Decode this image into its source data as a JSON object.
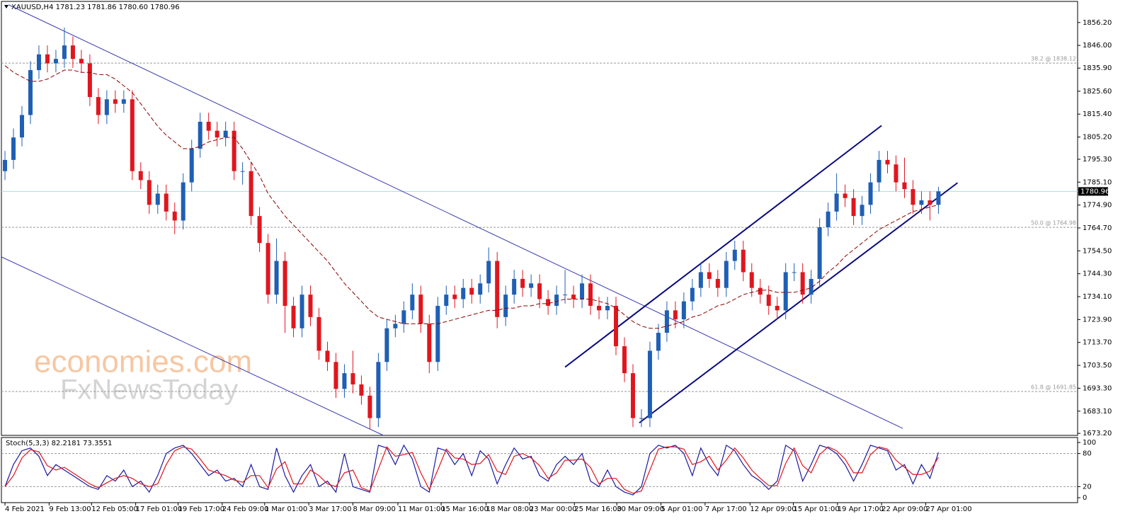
{
  "chart_data": {
    "type": "candlestick",
    "title": "XAUUSD,H4  1781.23 1781.86 1780.60 1780.96",
    "xlim": [
      -0.42,
      126.4
    ],
    "ylim": [
      1672.3,
      1865.6
    ],
    "yticks": [
      {
        "value": 1856.2,
        "label": "1856.20"
      },
      {
        "value": 1846,
        "label": "1846.00"
      },
      {
        "value": 1835.9,
        "label": "1835.90"
      },
      {
        "value": 1825.6,
        "label": "1825.60"
      },
      {
        "value": 1815.4,
        "label": "1815.40"
      },
      {
        "value": 1805.2,
        "label": "1805.20"
      },
      {
        "value": 1795.3,
        "label": "1795.30"
      },
      {
        "value": 1785.1,
        "label": "1785.10"
      },
      {
        "value": 1774.9,
        "label": "1774.90"
      },
      {
        "value": 1764.7,
        "label": "1764.70"
      },
      {
        "value": 1754.5,
        "label": "1754.50"
      },
      {
        "value": 1744.3,
        "label": "1744.30"
      },
      {
        "value": 1734.1,
        "label": "1734.10"
      },
      {
        "value": 1723.9,
        "label": "1723.90"
      },
      {
        "value": 1713.7,
        "label": "1713.70"
      },
      {
        "value": 1703.5,
        "label": "1703.50"
      },
      {
        "value": 1693.3,
        "label": "1693.30"
      },
      {
        "value": 1683.1,
        "label": "1683.10"
      },
      {
        "value": 1673.2,
        "label": "1673.20"
      }
    ],
    "xticks": [
      {
        "value": 0,
        "label": "4 Feb 2021"
      },
      {
        "value": 5.2,
        "label": "9 Feb 13:00"
      },
      {
        "value": 10.2,
        "label": "12 Feb 05:00"
      },
      {
        "value": 15.4,
        "label": "17 Feb 01:00"
      },
      {
        "value": 20.4,
        "label": "19 Feb 17:00"
      },
      {
        "value": 25.6,
        "label": "24 Feb 09:00"
      },
      {
        "value": 30.6,
        "label": "1 Mar 01:00"
      },
      {
        "value": 35.8,
        "label": "3 Mar 17:00"
      },
      {
        "value": 41,
        "label": "8 Mar 09:00"
      },
      {
        "value": 46.3,
        "label": "11 Mar 01:00"
      },
      {
        "value": 51.4,
        "label": "15 Mar 16:00"
      },
      {
        "value": 56.7,
        "label": "18 Mar 08:00"
      },
      {
        "value": 61.8,
        "label": "23 Mar 00:00"
      },
      {
        "value": 67.1,
        "label": "25 Mar 16:00"
      },
      {
        "value": 72.1,
        "label": "30 Mar 09:00"
      },
      {
        "value": 77.3,
        "label": "5 Apr 01:00"
      },
      {
        "value": 82.5,
        "label": "7 Apr 17:00"
      },
      {
        "value": 87.8,
        "label": "12 Apr 09:00"
      },
      {
        "value": 92.9,
        "label": "15 Apr 01:00"
      },
      {
        "value": 98.1,
        "label": "19 Apr 17:00"
      },
      {
        "value": 103.3,
        "label": "22 Apr 09:00"
      },
      {
        "value": 108.5,
        "label": "27 Apr 01:00"
      }
    ],
    "up_color": "#1f5fb4",
    "down_color": "#e0161e",
    "candles": [
      [
        1790,
        1799,
        1786,
        1795
      ],
      [
        1795,
        1809,
        1791,
        1805
      ],
      [
        1805,
        1819,
        1801,
        1815
      ],
      [
        1815,
        1839,
        1811,
        1835
      ],
      [
        1835,
        1846,
        1831,
        1842
      ],
      [
        1842,
        1846,
        1834,
        1838
      ],
      [
        1838,
        1844,
        1834,
        1840
      ],
      [
        1840,
        1854,
        1836,
        1846
      ],
      [
        1846,
        1850,
        1836,
        1840
      ],
      [
        1840,
        1844,
        1834,
        1838
      ],
      [
        1838,
        1842,
        1819,
        1823
      ],
      [
        1823,
        1827,
        1811,
        1815
      ],
      [
        1815,
        1826,
        1811,
        1822
      ],
      [
        1822,
        1826,
        1816,
        1820
      ],
      [
        1820,
        1826,
        1816,
        1822
      ],
      [
        1822,
        1826,
        1786,
        1790
      ],
      [
        1790,
        1794,
        1782,
        1786
      ],
      [
        1786,
        1790,
        1771,
        1775
      ],
      [
        1775,
        1784,
        1771,
        1780
      ],
      [
        1780,
        1784,
        1768,
        1772
      ],
      [
        1772,
        1776,
        1762,
        1768
      ],
      [
        1768,
        1789,
        1764,
        1785
      ],
      [
        1785,
        1804,
        1781,
        1800
      ],
      [
        1800,
        1816,
        1796,
        1812
      ],
      [
        1812,
        1816,
        1804,
        1808
      ],
      [
        1808,
        1812,
        1801,
        1805
      ],
      [
        1805,
        1812,
        1801,
        1808
      ],
      [
        1808,
        1812,
        1786,
        1790
      ],
      [
        1790,
        1794,
        1784,
        1790
      ],
      [
        1790,
        1794,
        1766,
        1770
      ],
      [
        1770,
        1774,
        1754,
        1758
      ],
      [
        1758,
        1762,
        1731,
        1735
      ],
      [
        1735,
        1760,
        1731,
        1750
      ],
      [
        1750,
        1754,
        1718,
        1730
      ],
      [
        1730,
        1734,
        1716,
        1720
      ],
      [
        1720,
        1739,
        1716,
        1735
      ],
      [
        1735,
        1739,
        1721,
        1725
      ],
      [
        1725,
        1729,
        1706,
        1710
      ],
      [
        1710,
        1714,
        1701,
        1705
      ],
      [
        1705,
        1709,
        1689,
        1693
      ],
      [
        1693,
        1704,
        1689,
        1700
      ],
      [
        1700,
        1710,
        1691,
        1695
      ],
      [
        1695,
        1699,
        1686,
        1690
      ],
      [
        1690,
        1694,
        1675,
        1680
      ],
      [
        1680,
        1709,
        1676,
        1705
      ],
      [
        1705,
        1724,
        1701,
        1720
      ],
      [
        1720,
        1726,
        1716,
        1722
      ],
      [
        1722,
        1732,
        1718,
        1728
      ],
      [
        1728,
        1740,
        1724,
        1735
      ],
      [
        1735,
        1739,
        1718,
        1722
      ],
      [
        1722,
        1726,
        1700,
        1705
      ],
      [
        1705,
        1734,
        1701,
        1730
      ],
      [
        1730,
        1739,
        1726,
        1735
      ],
      [
        1735,
        1739,
        1729,
        1733
      ],
      [
        1733,
        1742,
        1729,
        1738
      ],
      [
        1738,
        1742,
        1731,
        1735
      ],
      [
        1735,
        1744,
        1731,
        1740
      ],
      [
        1740,
        1756,
        1736,
        1750
      ],
      [
        1750,
        1754,
        1720,
        1725
      ],
      [
        1725,
        1739,
        1721,
        1735
      ],
      [
        1735,
        1746,
        1731,
        1742
      ],
      [
        1742,
        1746,
        1734,
        1738
      ],
      [
        1738,
        1744,
        1734,
        1740
      ],
      [
        1740,
        1744,
        1729,
        1733
      ],
      [
        1733,
        1737,
        1726,
        1730
      ],
      [
        1730,
        1739,
        1726,
        1735
      ],
      [
        1735,
        1746,
        1731,
        1735
      ],
      [
        1735,
        1739,
        1729,
        1733
      ],
      [
        1733,
        1744,
        1729,
        1740
      ],
      [
        1740,
        1744,
        1726,
        1730
      ],
      [
        1730,
        1734,
        1724,
        1728
      ],
      [
        1728,
        1734,
        1724,
        1730
      ],
      [
        1730,
        1734,
        1708,
        1712
      ],
      [
        1712,
        1716,
        1696,
        1700
      ],
      [
        1700,
        1704,
        1676,
        1680
      ],
      [
        1680,
        1684,
        1676,
        1680
      ],
      [
        1680,
        1714,
        1676,
        1710
      ],
      [
        1710,
        1722,
        1706,
        1718
      ],
      [
        1718,
        1732,
        1714,
        1728
      ],
      [
        1728,
        1732,
        1720,
        1724
      ],
      [
        1724,
        1736,
        1720,
        1732
      ],
      [
        1732,
        1742,
        1728,
        1738
      ],
      [
        1738,
        1749,
        1734,
        1745
      ],
      [
        1745,
        1749,
        1738,
        1742
      ],
      [
        1742,
        1746,
        1734,
        1738
      ],
      [
        1738,
        1754,
        1734,
        1750
      ],
      [
        1750,
        1759,
        1746,
        1755
      ],
      [
        1755,
        1759,
        1741,
        1745
      ],
      [
        1745,
        1749,
        1734,
        1738
      ],
      [
        1738,
        1742,
        1731,
        1735
      ],
      [
        1735,
        1739,
        1726,
        1730
      ],
      [
        1730,
        1734,
        1724,
        1728
      ],
      [
        1728,
        1749,
        1724,
        1745
      ],
      [
        1745,
        1749,
        1741,
        1745
      ],
      [
        1745,
        1749,
        1731,
        1735
      ],
      [
        1735,
        1746,
        1731,
        1742
      ],
      [
        1742,
        1769,
        1738,
        1765
      ],
      [
        1765,
        1776,
        1761,
        1772
      ],
      [
        1772,
        1789,
        1768,
        1780
      ],
      [
        1780,
        1784,
        1774,
        1778
      ],
      [
        1778,
        1782,
        1766,
        1770
      ],
      [
        1770,
        1779,
        1766,
        1775
      ],
      [
        1775,
        1789,
        1771,
        1785
      ],
      [
        1785,
        1799,
        1781,
        1795
      ],
      [
        1795,
        1799,
        1789,
        1793
      ],
      [
        1793,
        1797,
        1781,
        1785
      ],
      [
        1785,
        1796,
        1778,
        1782
      ],
      [
        1782,
        1786,
        1771,
        1775
      ],
      [
        1775,
        1781,
        1771,
        1777
      ],
      [
        1777,
        1781,
        1768,
        1775
      ],
      [
        1775,
        1783,
        1771,
        1781
      ]
    ],
    "moving_average": {
      "color": "#8b0000",
      "values": [
        1837,
        1834,
        1832,
        1830,
        1830,
        1831,
        1833,
        1835,
        1835,
        1834,
        1834,
        1833,
        1833,
        1831,
        1828,
        1825,
        1820,
        1815,
        1810,
        1806,
        1803,
        1800,
        1800,
        1801,
        1803,
        1804,
        1805,
        1805,
        1800,
        1794,
        1788,
        1780,
        1775,
        1770,
        1766,
        1762,
        1758,
        1754,
        1750,
        1745,
        1740,
        1736,
        1732,
        1728,
        1725,
        1724,
        1723,
        1722,
        1722,
        1722,
        1722,
        1722,
        1723,
        1724,
        1725,
        1726,
        1727,
        1728,
        1728,
        1729,
        1729,
        1730,
        1730,
        1731,
        1731,
        1732,
        1733,
        1733,
        1733,
        1733,
        1732,
        1731,
        1729,
        1726,
        1723,
        1721,
        1720,
        1720,
        1721,
        1722,
        1723,
        1725,
        1726,
        1728,
        1730,
        1731,
        1733,
        1735,
        1736,
        1737,
        1737,
        1736,
        1736,
        1736,
        1737,
        1738,
        1741,
        1745,
        1748,
        1752,
        1755,
        1758,
        1761,
        1764,
        1766,
        1768,
        1770,
        1772,
        1773,
        1774,
        1775
      ]
    },
    "last_price": {
      "value": 1780.96,
      "label": "1780.96",
      "color": "#a8dde8"
    },
    "levels": [
      {
        "value": 1838.12,
        "label": "38.2 @ 1838.12"
      },
      {
        "value": 1764.98,
        "label": "50.0 @ 1764.98"
      },
      {
        "value": 1691.85,
        "label": "61.8 @ 1691.85"
      }
    ],
    "trendlines": [
      {
        "x": [
          0.42,
          105.8
        ],
        "y": [
          1864.1,
          1675.4
        ],
        "color": "#3a3ab0",
        "width": 1
      },
      {
        "x": [
          -0.42,
          44.6
        ],
        "y": [
          1751.8,
          1672.3
        ],
        "color": "#3a3ab0",
        "width": 1
      },
      {
        "x": [
          66,
          103.3
        ],
        "y": [
          1702.7,
          1810.3
        ],
        "color": "#0a0a80",
        "width": 2
      },
      {
        "x": [
          74.75,
          112.25
        ],
        "y": [
          1677.9,
          1784.8
        ],
        "color": "#0a0a80",
        "width": 2
      }
    ],
    "watermark": [
      "economies.com",
      "FxNewsToday"
    ],
    "oscillator": {
      "title": "Stoch(5,3,3) 82.2181 73.3551",
      "ylim": [
        -9,
        109
      ],
      "yticks": [
        0,
        20,
        80,
        100
      ],
      "levels": [
        20,
        80
      ],
      "series": [
        {
          "color": "#1a1aa0",
          "values": [
            20,
            60,
            85,
            90,
            75,
            40,
            60,
            50,
            40,
            30,
            20,
            15,
            40,
            30,
            50,
            20,
            30,
            10,
            40,
            80,
            90,
            95,
            80,
            60,
            40,
            50,
            30,
            35,
            20,
            60,
            20,
            15,
            90,
            40,
            10,
            40,
            60,
            20,
            30,
            10,
            80,
            20,
            15,
            10,
            95,
            90,
            60,
            95,
            70,
            20,
            10,
            90,
            85,
            60,
            80,
            40,
            85,
            70,
            25,
            60,
            90,
            70,
            75,
            40,
            30,
            60,
            75,
            60,
            80,
            30,
            20,
            50,
            20,
            10,
            5,
            20,
            80,
            95,
            90,
            95,
            80,
            40,
            90,
            60,
            40,
            95,
            85,
            60,
            40,
            30,
            15,
            30,
            95,
            85,
            30,
            60,
            95,
            90,
            80,
            60,
            30,
            60,
            95,
            90,
            85,
            50,
            60,
            25,
            60,
            35,
            82
          ]
        },
        {
          "color": "#e0161e",
          "values": [
            20,
            40,
            72,
            87,
            83,
            58,
            50,
            55,
            45,
            35,
            25,
            18,
            27,
            35,
            40,
            35,
            25,
            20,
            25,
            60,
            85,
            92,
            88,
            70,
            50,
            45,
            40,
            32,
            28,
            40,
            40,
            18,
            52,
            65,
            25,
            25,
            50,
            40,
            25,
            20,
            45,
            50,
            18,
            12,
            52,
            92,
            75,
            78,
            82,
            45,
            15,
            50,
            88,
            72,
            70,
            60,
            62,
            78,
            48,
            42,
            75,
            80,
            72,
            58,
            35,
            45,
            68,
            68,
            70,
            55,
            25,
            35,
            35,
            15,
            8,
            12,
            50,
            88,
            92,
            92,
            88,
            60,
            65,
            75,
            50,
            68,
            90,
            72,
            50,
            35,
            22,
            22,
            62,
            90,
            58,
            45,
            78,
            92,
            85,
            70,
            45,
            45,
            78,
            92,
            88,
            68,
            55,
            42,
            42,
            48,
            73
          ]
        }
      ]
    }
  }
}
